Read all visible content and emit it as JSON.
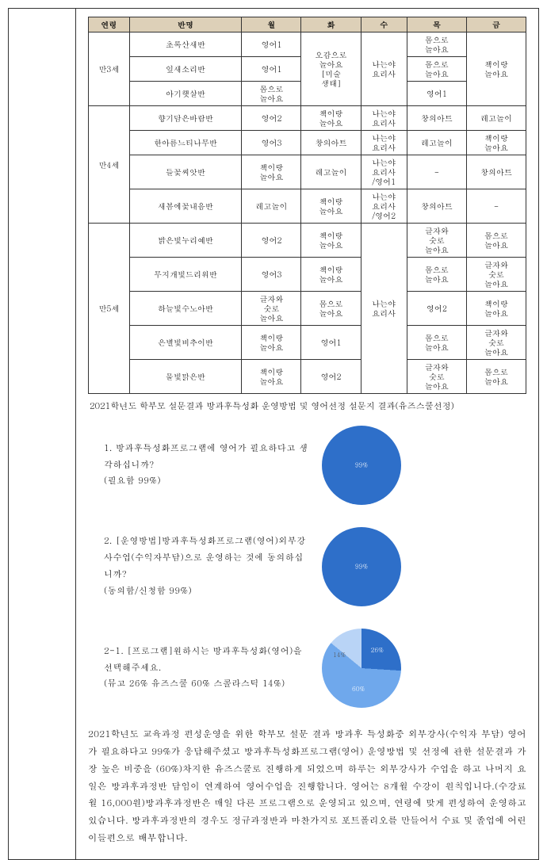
{
  "table": {
    "headers": [
      "연령",
      "반명",
      "월",
      "화",
      "수",
      "목",
      "금"
    ],
    "groups": [
      {
        "age": "만3세",
        "rows": [
          {
            "class": "초록산새반",
            "mon": "영어1",
            "tue_merge": "오감으로\n놀아요\n[미술\n생태]",
            "wed_merge": "나는야\n요리사",
            "thu": "몸으로\n놀아요",
            "fri_merge": "책이랑\n놀아요"
          },
          {
            "class": "잎새소리반",
            "mon": "영어1",
            "thu": "몸으로\n놀아요"
          },
          {
            "class": "아기햇살반",
            "mon": "몸으로\n놀아요",
            "thu": "영어1"
          }
        ]
      },
      {
        "age": "만4세",
        "rows": [
          {
            "class": "향기담은바람반",
            "mon": "영어2",
            "tue": "책이랑\n놀아요",
            "wed": "나는야\n요리사",
            "thu": "창의아트",
            "fri": "레고놀이"
          },
          {
            "class": "한아름느티나무반",
            "mon": "영어3",
            "tue": "창의아트",
            "wed": "나는야\n요리사",
            "thu": "레고놀이",
            "fri": "책이랑\n놀아요"
          },
          {
            "class": "들꽃씨앗반",
            "mon": "책이랑\n놀아요",
            "tue": "레고놀이",
            "wed": "나는야\n요리사\n/영어1",
            "thu": "-",
            "fri": "창의아트"
          },
          {
            "class": "새봄에꽃내음반",
            "mon": "레고놀이",
            "tue": "책이랑\n놀아요",
            "wed": "나는야\n요리사\n/영어2",
            "thu": "창의아트",
            "fri": "-"
          }
        ]
      },
      {
        "age": "만5세",
        "rows": [
          {
            "class": "밝은빛누리예반",
            "mon": "영어2",
            "tue": "책이랑\n놀아요",
            "wed_merge": "나는야\n요리사",
            "thu": "글자와\n숫로\n놀아요",
            "fri": "몸으로\n놀아요"
          },
          {
            "class": "무지개빛드리워반",
            "mon": "영어3",
            "tue": "책이랑\n놀아요",
            "thu": "몸으로\n놀아요",
            "fri": "글자와\n숫로\n놀아요"
          },
          {
            "class": "하늘빛수노아반",
            "mon": "글자와\n숫로\n놀아요",
            "tue": "몸으로\n놀아요",
            "thu": "영어2",
            "fri": "책이랑\n놀아요"
          },
          {
            "class": "은별빛비추이반",
            "mon": "책이랑\n놀아요",
            "tue": "영어1",
            "thu": "몸으로\n놀아요",
            "fri": "글자와\n숫로\n놀아요"
          },
          {
            "class": "물빛맑은반",
            "mon": "책이랑\n놀아요",
            "tue": "영어2",
            "thu": "글자와\n숫로\n놀아요",
            "fri": "몸으로\n놀아요"
          }
        ]
      }
    ]
  },
  "caption": "2021학년도 학부모 설문결과 방과후특성화 운영방법 및  영어선정 설문지 결과(유즈스쿨선정)",
  "survey": {
    "q1": {
      "text": "1. 방과후특성화프로그램에 영어가 필요하다고 생각하십니까?\n(필요함 99%)",
      "percent_label": "99%",
      "color": "#2e6fc9"
    },
    "q2": {
      "text": "2. [운영방법]방과후특성화프로그램(영어)외부강사수업(수익자부담)으로 운영하는 것에 동의하십니까?\n(동의함/신청함 99%)",
      "percent_label": "99%",
      "color": "#2e6fc9"
    },
    "q3": {
      "text": "2-1. [프로그램]원하시는 방과후특성화(영어)을 선택해주세요.\n(뮤고 26% 유즈스쿨 60% 스콜라스틱 14%)",
      "slices": [
        {
          "label": "26%",
          "color": "#2e6fc9",
          "pct": 26
        },
        {
          "label": "60%",
          "color": "#6fa8ec",
          "pct": 60
        },
        {
          "label": "14%",
          "color": "#b9d4f6",
          "pct": 14
        }
      ]
    }
  },
  "body_text": "2021학년도 교육과정 편성운영을 위한 학부모 설문 결과 방과후 특성화중 외부강사(수익자 부담) 영어가 필요하다고 99%가 응답해주셨고 방과후특성화프로그램(영어) 운영방법 및 선정에 관한 설문결과 가장 높은 비중을 (60%)차지한 유즈스쿨로 진행하게 되었으며 하루는 외부강사가 수업을 하고 나머지 요일은 방과후과정반 담임이 연계하여 영어수업을 진행합니다. 영어는 8개월 수강이 원칙입니다.(수강료 월 16,000원)방과후과정반은 매일 다른 프로그램으로 운영되고 있으며, 연령에 맞게 편성하여 운영하고 있습니다. 방과후과정반의 경우도 정규과정반과 마찬가지로 포트폴리오를 만들어서 수료 및 졸업에 어린이들편으로 배부합니다."
}
